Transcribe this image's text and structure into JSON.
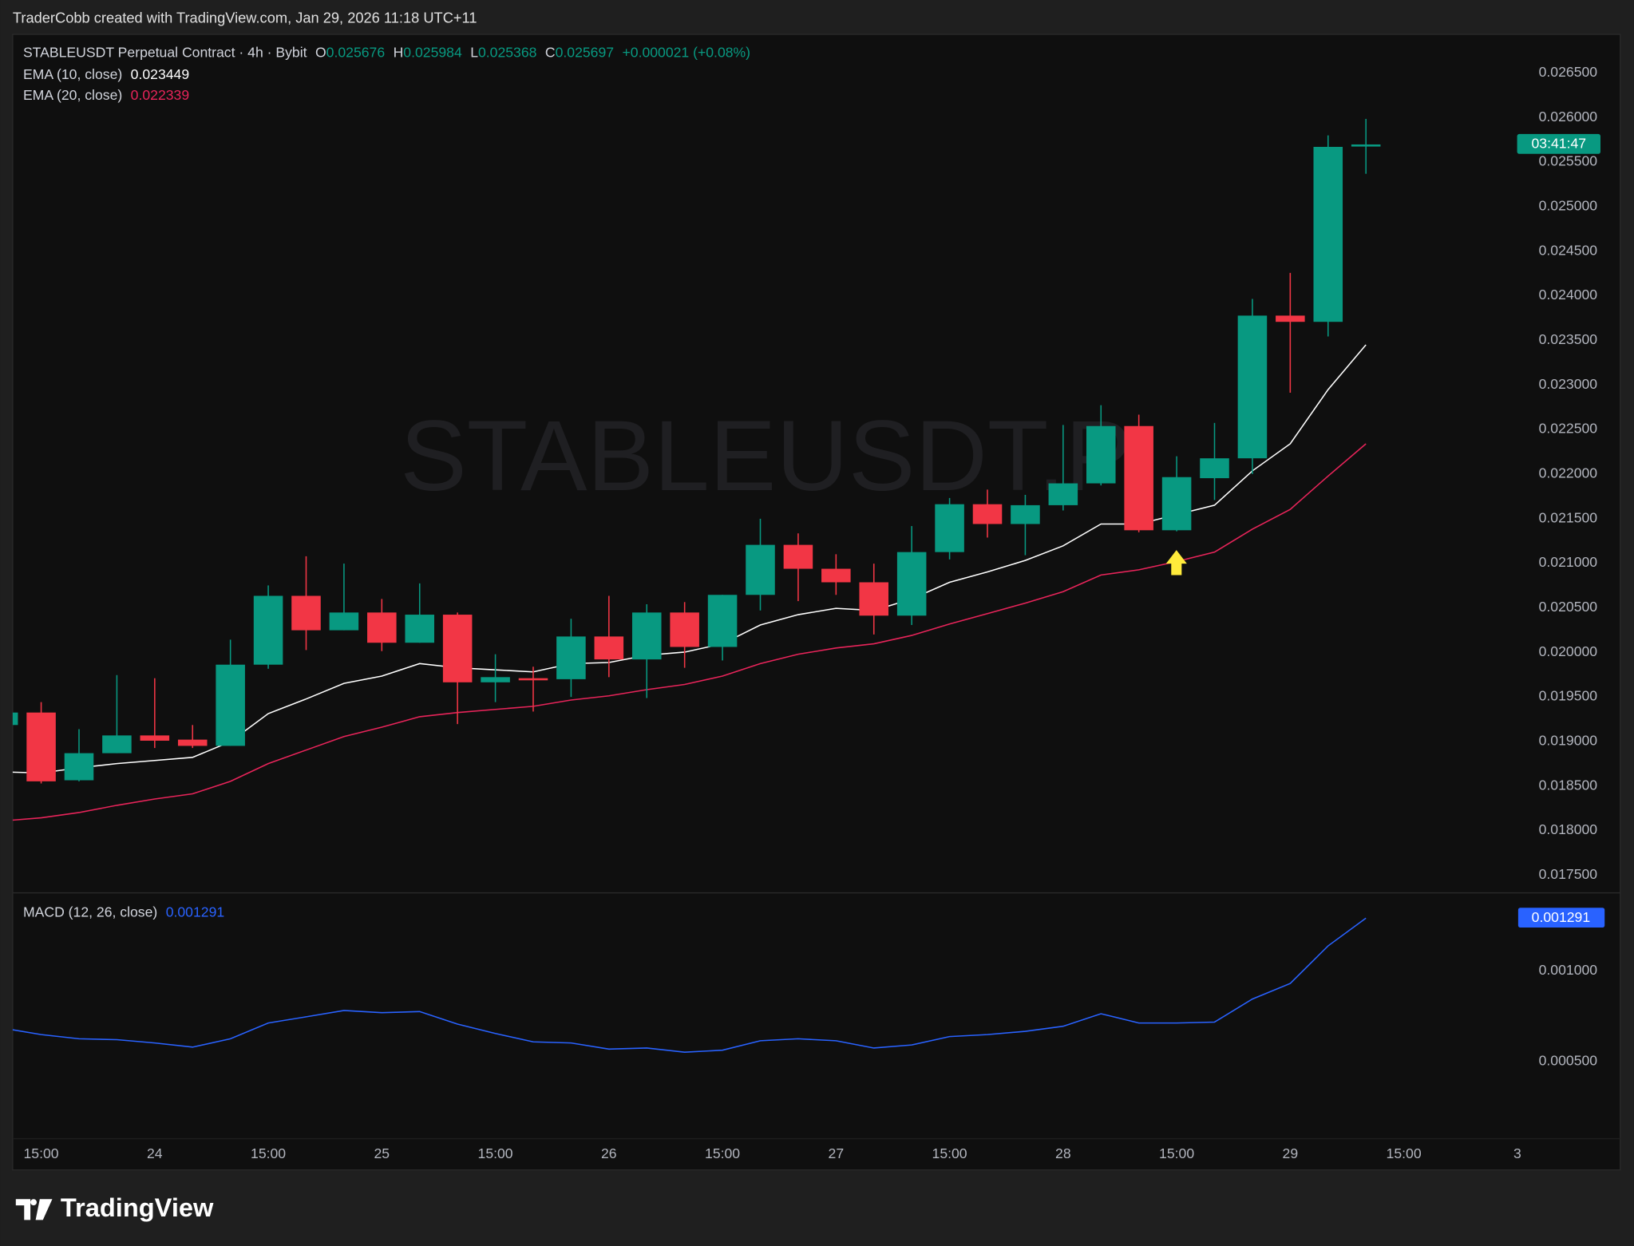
{
  "header": {
    "attribution": "TraderCobb created with TradingView.com, Jan 29, 2026 11:18 UTC+11"
  },
  "chart_data": [
    {
      "type": "candlestick",
      "title": "STABLEUSDT Perpetual Contract · 4h · Bybit",
      "watermark": "STABLEUSDT.P",
      "ohlc_labels": [
        "O",
        "H",
        "L",
        "C"
      ],
      "change": "+0.000021 (+0.08%)",
      "countdown": "03:41:47",
      "up_color": "#089981",
      "down_color": "#f23645",
      "categories": [
        null,
        "15:00",
        null,
        null,
        "24",
        null,
        null,
        "15:00",
        null,
        null,
        "25",
        null,
        null,
        "15:00",
        null,
        null,
        "26",
        null,
        null,
        "15:00",
        null,
        null,
        "27",
        null,
        null,
        "15:00",
        null,
        null,
        "28",
        null,
        null,
        "15:00",
        null,
        null,
        "29",
        null,
        null,
        "15:00",
        null,
        null,
        "3"
      ],
      "open": [
        0.019184,
        0.019324,
        0.018564,
        0.018868,
        0.019067,
        0.01902,
        0.01895,
        0.019861,
        0.020633,
        0.020247,
        0.020446,
        0.020107,
        0.020422,
        0.019663,
        0.019709,
        0.019698,
        0.020177,
        0.01992,
        0.020446,
        0.02006,
        0.020644,
        0.021205,
        0.020937,
        0.020785,
        0.020411,
        0.021124,
        0.021661,
        0.021439,
        0.02165,
        0.021895,
        0.022538,
        0.021369,
        0.021953,
        0.022176,
        0.023777,
        0.023707,
        0.025676,
        null,
        null,
        null,
        null
      ],
      "high": [
        0.019324,
        0.019441,
        0.019137,
        0.019744,
        0.019709,
        0.019184,
        0.020142,
        0.02075,
        0.021077,
        0.020995,
        0.020598,
        0.020773,
        0.020446,
        0.019978,
        0.019838,
        0.020376,
        0.020633,
        0.020539,
        0.020563,
        0.020644,
        0.021498,
        0.021334,
        0.0211,
        0.020995,
        0.021416,
        0.021731,
        0.021825,
        0.021766,
        0.02255,
        0.022772,
        0.022666,
        0.022199,
        0.022573,
        0.023964,
        0.024256,
        0.025799,
        0.025984,
        null,
        null,
        null,
        null
      ],
      "low": [
        0.019184,
        0.018529,
        0.018552,
        0.018868,
        0.018926,
        0.018926,
        0.01895,
        0.019815,
        0.020025,
        0.020247,
        0.020013,
        0.020107,
        0.019195,
        0.019441,
        0.019335,
        0.019499,
        0.019721,
        0.019487,
        0.019826,
        0.019908,
        0.020469,
        0.020574,
        0.020644,
        0.0202,
        0.020306,
        0.021042,
        0.021287,
        0.021089,
        0.021591,
        0.021872,
        0.021346,
        0.021357,
        0.021708,
        0.022,
        0.022912,
        0.023543,
        0.025368,
        null,
        null,
        null,
        null
      ],
      "close": [
        0.019324,
        0.018552,
        0.018868,
        0.019067,
        0.019008,
        0.01895,
        0.019861,
        0.020633,
        0.020247,
        0.020446,
        0.020107,
        0.020422,
        0.019663,
        0.019721,
        0.019698,
        0.020177,
        0.01992,
        0.020446,
        0.02006,
        0.020644,
        0.021205,
        0.020937,
        0.020785,
        0.020411,
        0.021124,
        0.021661,
        0.021439,
        0.02165,
        0.021895,
        0.022538,
        0.021369,
        0.021965,
        0.022176,
        0.023777,
        0.023707,
        0.02567,
        0.025697,
        null,
        null,
        null,
        null
      ],
      "series": [
        {
          "name": "EMA (10, close)",
          "color": "#ffffff",
          "values": [
            0.018658,
            0.018646,
            0.018704,
            0.018751,
            0.018786,
            0.018821,
            0.018997,
            0.019312,
            0.019476,
            0.019651,
            0.019733,
            0.019873,
            0.019826,
            0.019803,
            0.01978,
            0.019873,
            0.019885,
            0.019967,
            0.020002,
            0.020095,
            0.020306,
            0.020422,
            0.020493,
            0.020469,
            0.020598,
            0.020785,
            0.020902,
            0.02103,
            0.021194,
            0.021439,
            0.021439,
            0.021544,
            0.02165,
            0.022035,
            0.022339,
            0.022947,
            0.023449,
            null,
            null,
            null,
            null
          ]
        },
        {
          "name": "EMA (20, close)",
          "color": "#e8245a",
          "values": [
            0.018108,
            0.018143,
            0.018202,
            0.018283,
            0.018354,
            0.018412,
            0.018552,
            0.018751,
            0.018903,
            0.019055,
            0.01916,
            0.019277,
            0.019324,
            0.019359,
            0.019394,
            0.019464,
            0.019511,
            0.019581,
            0.019639,
            0.019733,
            0.019873,
            0.019978,
            0.020048,
            0.020095,
            0.020189,
            0.020317,
            0.020434,
            0.020551,
            0.02068,
            0.020867,
            0.020925,
            0.021018,
            0.021124,
            0.021381,
            0.021603,
            0.021977,
            0.022339,
            null,
            null,
            null,
            null
          ]
        }
      ],
      "ylim": [
        0.017313,
        0.026932
      ],
      "yticks": [
        {
          "value": 0.0175,
          "label": "0.017500"
        },
        {
          "value": 0.018,
          "label": "0.018000"
        },
        {
          "value": 0.0185,
          "label": "0.018500"
        },
        {
          "value": 0.019,
          "label": "0.019000"
        },
        {
          "value": 0.0195,
          "label": "0.019500"
        },
        {
          "value": 0.02,
          "label": "0.020000"
        },
        {
          "value": 0.0205,
          "label": "0.020500"
        },
        {
          "value": 0.021,
          "label": "0.021000"
        },
        {
          "value": 0.0215,
          "label": "0.021500"
        },
        {
          "value": 0.022,
          "label": "0.022000"
        },
        {
          "value": 0.0225,
          "label": "0.022500"
        },
        {
          "value": 0.023,
          "label": "0.023000"
        },
        {
          "value": 0.0235,
          "label": "0.023500"
        },
        {
          "value": 0.024,
          "label": "0.024000"
        },
        {
          "value": 0.0245,
          "label": "0.024500"
        },
        {
          "value": 0.025,
          "label": "0.025000"
        },
        {
          "value": 0.0255,
          "label": "0.025500"
        },
        {
          "value": 0.026,
          "label": "0.026000"
        },
        {
          "value": 0.0265,
          "label": "0.026500"
        }
      ],
      "grid": false
    },
    {
      "type": "line",
      "series": [
        {
          "name": "MACD (12, 26, close)",
          "color": "#2962ff",
          "values": [
            0.000684,
            0.000649,
            0.000626,
            0.000621,
            0.000603,
            0.00058,
            0.000626,
            0.000713,
            0.000747,
            0.000782,
            0.00077,
            0.000776,
            0.000707,
            0.000655,
            0.000609,
            0.000603,
            0.000569,
            0.000575,
            0.000552,
            0.000563,
            0.000615,
            0.000626,
            0.000615,
            0.000575,
            0.000592,
            0.000638,
            0.000649,
            0.000667,
            0.000695,
            0.000764,
            0.000713,
            0.000713,
            0.000718,
            0.000845,
            0.000931,
            0.001138,
            0.001291,
            null,
            null,
            null,
            null
          ]
        }
      ],
      "ylim": [
        7.5e-05,
        0.001425
      ],
      "yticks": [
        {
          "value": 0.0005,
          "label": "0.000500"
        },
        {
          "value": 0.001,
          "label": "0.001000"
        }
      ],
      "grid": false
    }
  ],
  "footer": {
    "logo": "TradingView"
  }
}
